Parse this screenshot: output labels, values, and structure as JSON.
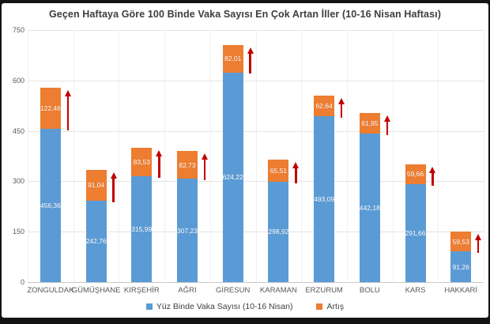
{
  "frame": {
    "background": "#141414",
    "surface": "#ffffff"
  },
  "chart_data": {
    "type": "bar",
    "stacked": true,
    "title": "Geçen Haftaya Göre 100 Binde Vaka Sayısı En Çok Artan İller (10-16 Nisan Haftası)",
    "categories": [
      "ZONGULDAK",
      "GÜMÜŞHANE",
      "KIRŞEHİR",
      "AĞRI",
      "GİRESUN",
      "KARAMAN",
      "ERZURUM",
      "BOLU",
      "KARS",
      "HAKKARİ"
    ],
    "series": [
      {
        "name": "Yüz Binde Vaka Sayısı (10-16 Nisan)",
        "color": "#5b9bd5",
        "values": [
          456.36,
          242.76,
          315.99,
          307.23,
          624.22,
          298.92,
          493.09,
          442.18,
          291.66,
          91.26
        ],
        "value_labels": [
          "456,36",
          "242,76",
          "315,99",
          "307,23",
          "624,22",
          "298,92",
          "493,09",
          "442,18",
          "291,66",
          "91,26"
        ]
      },
      {
        "name": "Artış",
        "color": "#ed7d31",
        "values": [
          122.46,
          91.04,
          83.53,
          82.73,
          82.01,
          65.51,
          62.64,
          61.95,
          59.66,
          59.53
        ],
        "value_labels": [
          "122,46",
          "91,04",
          "83,53",
          "82,73",
          "82,01",
          "65,51",
          "62,64",
          "61,95",
          "59,66",
          "59,53"
        ]
      }
    ],
    "ylim": [
      0,
      750
    ],
    "yticks": [
      0,
      150,
      300,
      450,
      600,
      750
    ],
    "ytick_labels": [
      "0",
      "150",
      "300",
      "450",
      "600",
      "750"
    ],
    "grid": true,
    "legend_position": "bottom",
    "annotation": "red-up-arrow-per-increase-segment",
    "annotation_color": "#c00000",
    "xlabel": "",
    "ylabel": ""
  }
}
